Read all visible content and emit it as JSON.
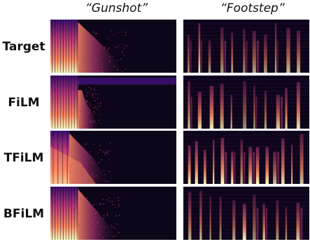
{
  "columns": [
    "“Gunshot”",
    "“Footstep”"
  ],
  "rows": [
    {
      "label": "Target",
      "gunshot": {
        "burst_end": 0.22,
        "decay_end": 0.6,
        "variant": "target"
      },
      "footstep": {
        "variant": "target"
      }
    },
    {
      "label": "FiLM",
      "gunshot": {
        "burst_end": 0.22,
        "decay_end": 0.4,
        "variant": "film"
      },
      "footstep": {
        "variant": "film"
      }
    },
    {
      "label": "TFiLM",
      "gunshot": {
        "burst_end": 0.15,
        "decay_end": 0.48,
        "variant": "tfilm"
      },
      "footstep": {
        "variant": "tfilm"
      }
    },
    {
      "label": "BFiLM",
      "gunshot": {
        "burst_end": 0.22,
        "decay_end": 0.55,
        "variant": "bfilm"
      },
      "footstep": {
        "variant": "bfilm"
      }
    }
  ],
  "colors": {
    "background": "#0d0518",
    "low": "#3b0f70",
    "mid": "#b73779",
    "high": "#fc8961",
    "peak": "#fcfdbf"
  }
}
